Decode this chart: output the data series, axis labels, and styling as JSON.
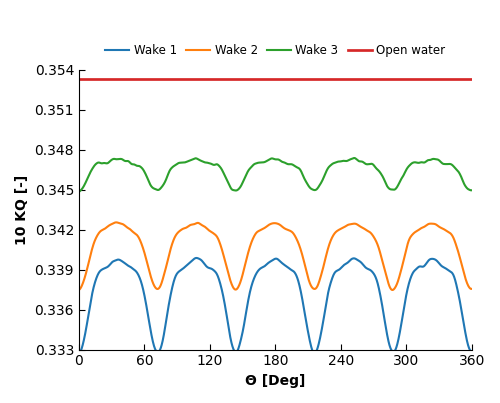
{
  "title": "",
  "xlabel": "Θ [Deg]",
  "ylabel": "10 KQ [-]",
  "xlim": [
    0,
    360
  ],
  "ylim": [
    0.333,
    0.354
  ],
  "yticks": [
    0.333,
    0.336,
    0.339,
    0.342,
    0.345,
    0.348,
    0.351,
    0.354
  ],
  "xticks": [
    0,
    60,
    120,
    180,
    240,
    300,
    360
  ],
  "open_water_value": 0.3533,
  "colors": {
    "wake1": "#1f77b4",
    "wake2": "#ff7f0e",
    "wake3": "#2ca02c",
    "open_water": "#d62728"
  },
  "linewidth": 1.5,
  "legend_labels": [
    "Wake 1",
    "Wake 2",
    "Wake 3",
    "Open water"
  ],
  "background_color": "#ffffff"
}
